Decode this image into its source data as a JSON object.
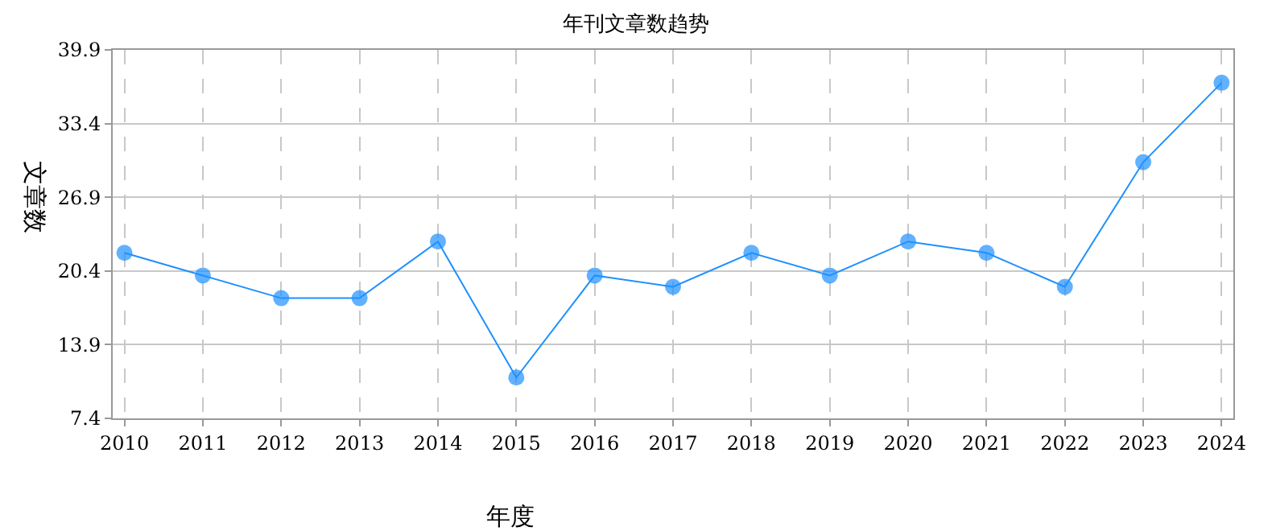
{
  "chart_data": {
    "type": "line",
    "title": "年刊文章数趋势",
    "xlabel": "年度",
    "ylabel": "文章数",
    "categories": [
      "2010",
      "2011",
      "2012",
      "2013",
      "2014",
      "2015",
      "2016",
      "2017",
      "2018",
      "2019",
      "2020",
      "2021",
      "2022",
      "2023",
      "2024"
    ],
    "series": [
      {
        "color": "#1e90ff",
        "values": [
          22,
          20,
          18,
          18,
          23,
          11,
          20,
          19,
          22,
          20,
          23,
          22,
          19,
          30,
          37
        ]
      }
    ],
    "ylim": [
      7.4,
      39.9
    ],
    "yticks": [
      7.4,
      13.9,
      20.4,
      26.9,
      33.4,
      39.9
    ],
    "grid": true,
    "marker": "circle",
    "line_style": "solid"
  }
}
